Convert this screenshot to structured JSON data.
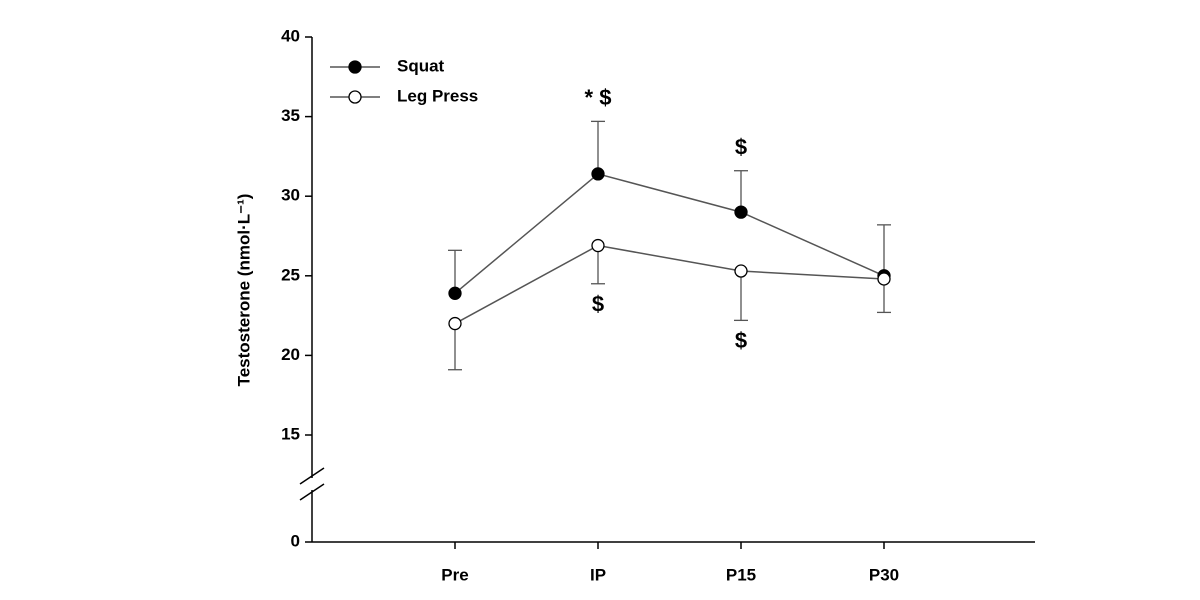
{
  "chart_data": {
    "type": "line",
    "y_label": "Testosterone (nmol·L⁻¹)",
    "categories": [
      "Pre",
      "IP",
      "P15",
      "P30"
    ],
    "series": [
      {
        "name": "Squat",
        "color": "#000000",
        "marker_fill": "#000000",
        "error_direction": "up",
        "values": [
          23.9,
          31.4,
          29.0,
          25.0
        ],
        "errors": [
          2.7,
          3.3,
          2.6,
          3.2
        ]
      },
      {
        "name": "Leg Press",
        "color": "#000000",
        "marker_fill": "#ffffff",
        "error_direction": "down",
        "values": [
          22.0,
          26.9,
          25.3,
          24.8
        ],
        "errors": [
          2.9,
          2.4,
          3.1,
          2.1
        ]
      }
    ],
    "ylim": [
      0,
      40
    ],
    "yticks": [
      0,
      15,
      20,
      25,
      30,
      35,
      40
    ],
    "broken_axis": true,
    "legend": "upper-left",
    "annotations": [
      {
        "text": "* $",
        "category": "IP",
        "series": "Squat"
      },
      {
        "text": "$",
        "category": "P15",
        "series": "Squat"
      },
      {
        "text": "$",
        "category": "IP",
        "series": "Leg Press"
      },
      {
        "text": "$",
        "category": "P15",
        "series": "Leg Press"
      }
    ]
  }
}
